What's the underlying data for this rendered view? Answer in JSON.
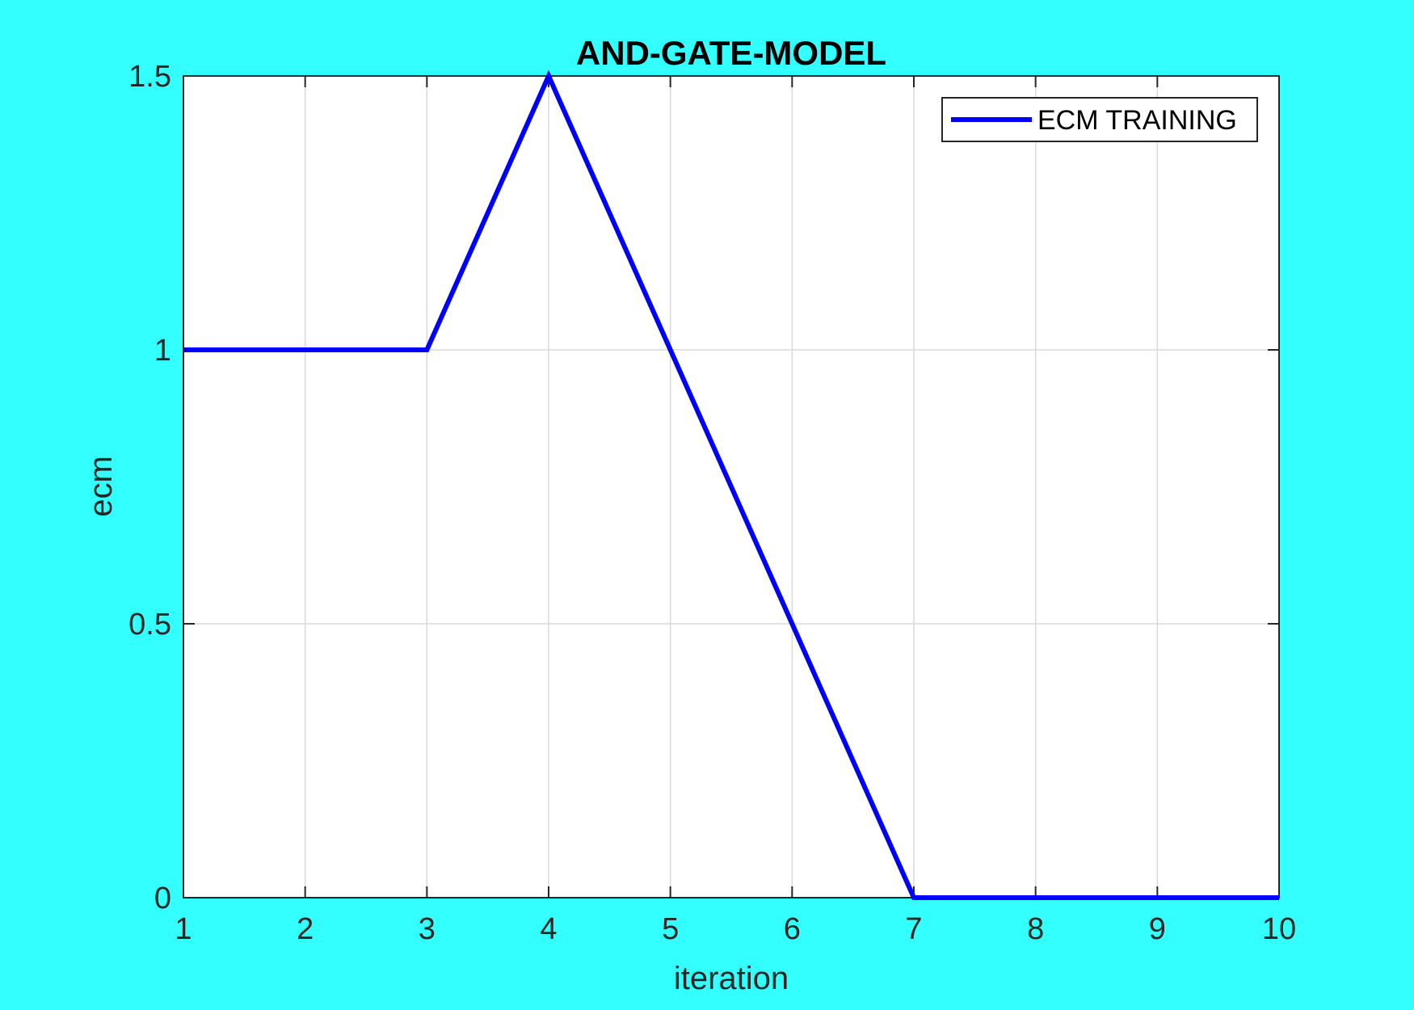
{
  "chart_data": {
    "type": "line",
    "title": "AND-GATE-MODEL",
    "xlabel": "iteration",
    "ylabel": "ecm",
    "xlim": [
      1,
      10
    ],
    "ylim": [
      0,
      1.5
    ],
    "x_ticks": [
      1,
      2,
      3,
      4,
      5,
      6,
      7,
      8,
      9,
      10
    ],
    "x_tick_labels": [
      "1",
      "2",
      "3",
      "4",
      "5",
      "6",
      "7",
      "8",
      "9",
      "10"
    ],
    "y_ticks": [
      0,
      0.5,
      1,
      1.5
    ],
    "y_tick_labels": [
      "0",
      "0.5",
      "1",
      "1.5"
    ],
    "grid": true,
    "legend_position": "top-right",
    "series": [
      {
        "name": "ECM TRAINING",
        "color": "#0000ff",
        "x": [
          1,
          2,
          3,
          4,
          5,
          6,
          7,
          8,
          9,
          10
        ],
        "y": [
          1,
          1,
          1,
          1.5,
          1,
          0.5,
          0,
          0,
          0,
          0
        ]
      }
    ]
  },
  "colors": {
    "figure_background": "#33ffff",
    "axes_background": "#ffffff",
    "grid": "#d9d9d9",
    "axis": "#262626"
  }
}
